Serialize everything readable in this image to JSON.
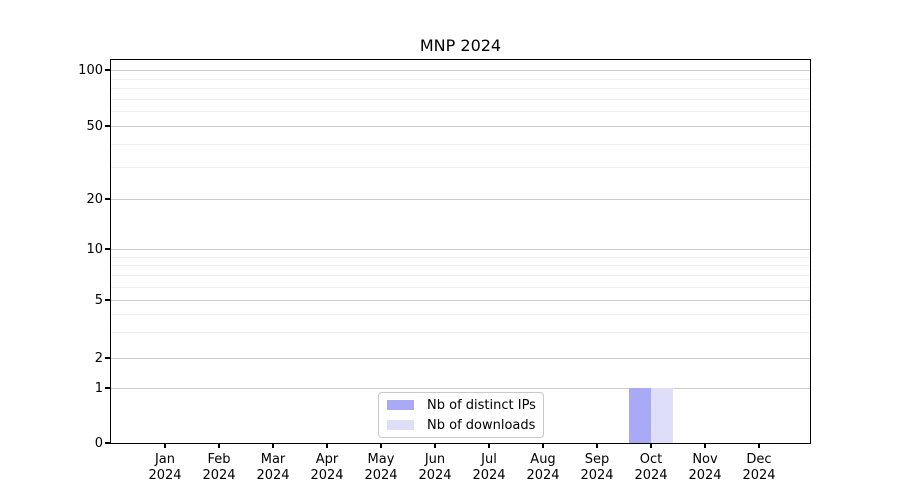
{
  "chart_data": {
    "type": "bar",
    "title": "MNP 2024",
    "categories": [
      "Jan",
      "Feb",
      "Mar",
      "Apr",
      "May",
      "Jun",
      "Jul",
      "Aug",
      "Sep",
      "Oct",
      "Nov",
      "Dec"
    ],
    "x_tick_year": "2024",
    "xlabel": "",
    "ylabel": "",
    "y_axis": {
      "scale": "log-like",
      "tick_labels": [
        100,
        50,
        20,
        10,
        5,
        2,
        1,
        0
      ],
      "minor_tick_values": [
        3,
        4,
        6,
        7,
        8,
        9,
        30,
        40,
        60,
        70,
        80,
        90
      ],
      "range": [
        0,
        100
      ]
    },
    "grid": "horizontal major and minor gridlines",
    "series": [
      {
        "name": "Nb of distinct IPs",
        "color": "#a9a9f6",
        "values": [
          0,
          0,
          0,
          0,
          0,
          0,
          0,
          0,
          0,
          1,
          0,
          0
        ]
      },
      {
        "name": "Nb of downloads",
        "color": "#dedef9",
        "values": [
          0,
          0,
          0,
          0,
          0,
          0,
          0,
          0,
          0,
          1,
          0,
          0
        ]
      }
    ],
    "legend": {
      "position": "lower center",
      "entries": [
        "Nb of distinct IPs",
        "Nb of downloads"
      ]
    }
  }
}
